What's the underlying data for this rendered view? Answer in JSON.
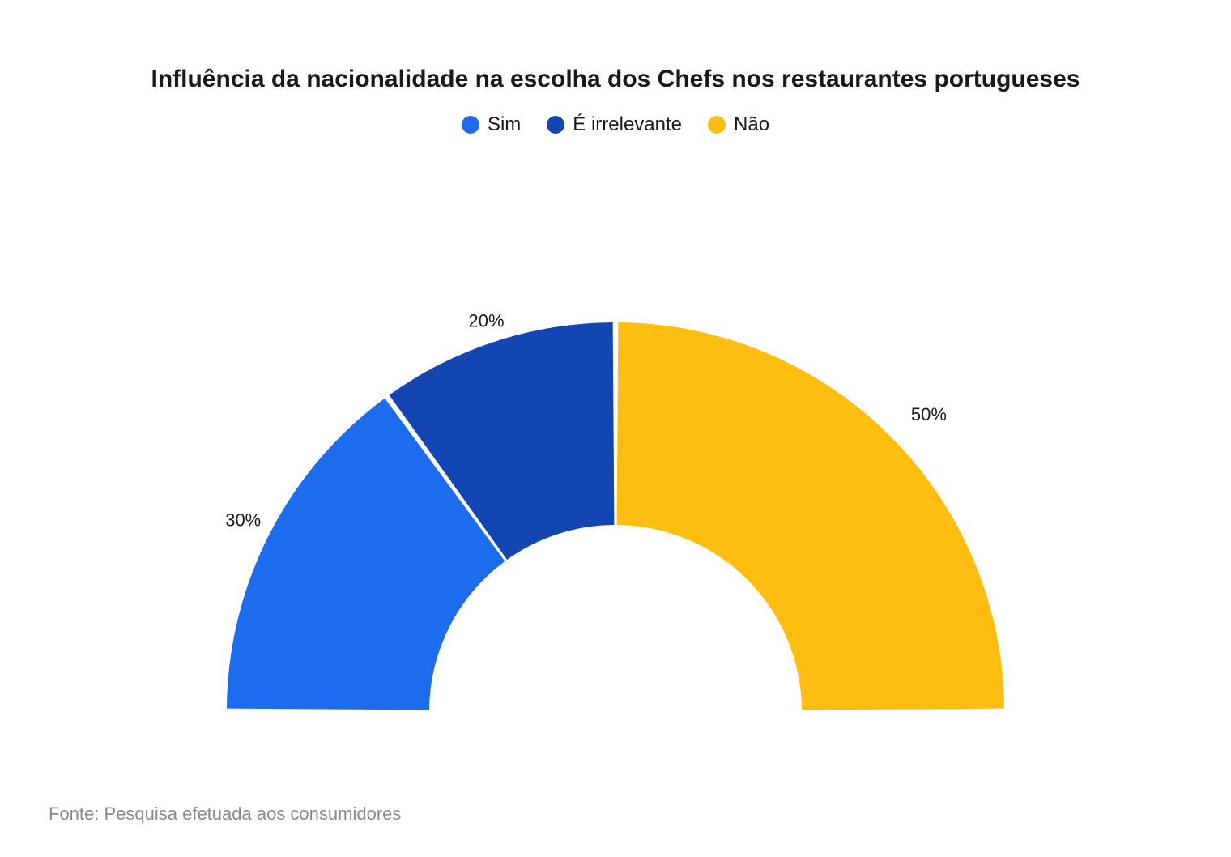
{
  "chart": {
    "type": "half-donut",
    "title": "Influência da nacionalidade na escolha dos Chefs nos restaurantes portugueses",
    "title_fontsize": 30,
    "title_fontweight": "bold",
    "legend_fontsize": 24,
    "slice_label_fontsize": 22,
    "background_color": "#ffffff",
    "text_color": "#19191a",
    "source_color": "#888a90",
    "slices": [
      {
        "label": "Sim",
        "value": 30,
        "value_label": "30%",
        "color": "#1e6cee"
      },
      {
        "label": "É irrelevante",
        "value": 20,
        "value_label": "20%",
        "color": "#1345b3"
      },
      {
        "label": "Não",
        "value": 50,
        "value_label": "50%",
        "color": "#febd11"
      }
    ],
    "inner_radius": 230,
    "outer_radius": 480,
    "gap_deg": 0.8,
    "start_angle_deg": 180,
    "end_angle_deg": 360
  },
  "source": "Fonte: Pesquisa efetuada aos consumidores"
}
